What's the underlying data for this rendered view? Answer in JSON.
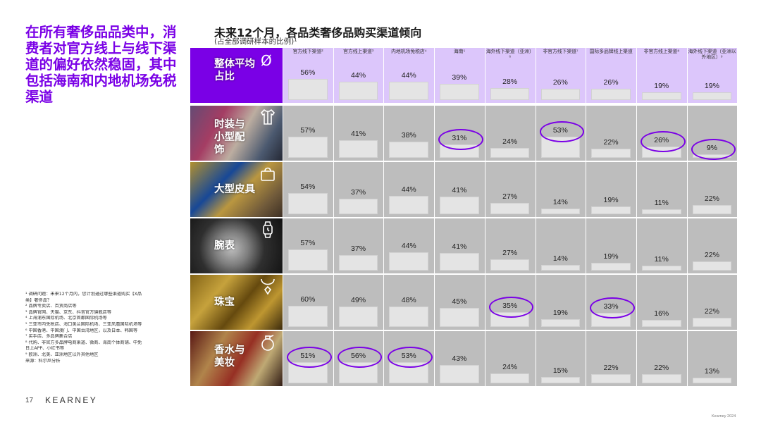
{
  "headline": "在所有奢侈品品类中，消费者对官方线上与线下渠道的偏好依然稳固，其中包括海南和内地机场免税渠道",
  "chart_title": "未来12个月，各品类奢侈品购买渠道倾向",
  "chart_subtitle": "(占全部调研样本的比例)¹",
  "footnotes": [
    "¹ 调研问题：未来12个月内，您计划通过哪些渠道购买【X品",
    "  类】奢侈品？",
    "² 品牌专卖店、百货商店等",
    "³ 品牌官网、天猫、京东、抖音官方旗舰店等",
    "⁴ 上海浦东国际机场、北京首都国际机场等",
    "⁵ 三亚市内免税店、海口美兰国际机场、三亚凤凰国际机场等",
    "⁶ 中国香港、中国澳门、中国台湾地区，以及日本、韩国等",
    "⁷ 买手店、多品牌集合店",
    "⁸ 代购、非官方多品牌电商渠道、微商、海南个体商铺、中免",
    "  日上APP、小红书等",
    "⁹ 欧洲、北美、亚洲地区以外其他地区",
    "来源：科尔尼分析"
  ],
  "page_number": "17",
  "brand": "KEARNEY",
  "copyright": "Kearney 2024",
  "colors": {
    "accent": "#7a00e6",
    "avg_band": "#dcc6fb",
    "row_band": "#bdbdbd",
    "bar": "#e4e4e4"
  },
  "chart_data": {
    "type": "table",
    "title": "未来12个月，各品类奢侈品购买渠道倾向",
    "subtitle": "(占全部调研样本的比例)¹",
    "unit": "%",
    "columns": [
      "官方线下渠道²",
      "官方线上渠道³",
      "内地机场免税店⁴",
      "海南⁵",
      "海外线下渠道（亚洲）⁶",
      "非官方线下渠道⁷",
      "国际多品牌线上渠道",
      "非官方线上渠道⁸",
      "海外线下渠道（亚洲以外地区）⁹"
    ],
    "rows": [
      {
        "label": "整体平均占比",
        "icon": "average-icon",
        "values": [
          56,
          44,
          44,
          39,
          28,
          26,
          26,
          19,
          19
        ],
        "highlighted": []
      },
      {
        "label": "时装与小型配饰",
        "icon": "clothing-icon",
        "values": [
          57,
          41,
          38,
          31,
          24,
          53,
          22,
          26,
          9
        ],
        "highlighted": [
          3,
          5,
          7,
          8
        ]
      },
      {
        "label": "大型皮具",
        "icon": "handbag-icon",
        "values": [
          54,
          37,
          44,
          41,
          27,
          14,
          19,
          11,
          22
        ],
        "highlighted": []
      },
      {
        "label": "腕表",
        "icon": "watch-icon",
        "values": [
          57,
          37,
          44,
          41,
          27,
          14,
          19,
          11,
          22
        ],
        "highlighted": []
      },
      {
        "label": "珠宝",
        "icon": "necklace-icon",
        "values": [
          60,
          49,
          48,
          45,
          35,
          19,
          33,
          16,
          22
        ],
        "highlighted": [
          4,
          6
        ]
      },
      {
        "label": "香水与美妆",
        "icon": "perfume-icon",
        "values": [
          51,
          56,
          53,
          43,
          24,
          15,
          22,
          22,
          13
        ],
        "highlighted": [
          0,
          1,
          2
        ]
      }
    ],
    "ylim": [
      0,
      100
    ]
  }
}
